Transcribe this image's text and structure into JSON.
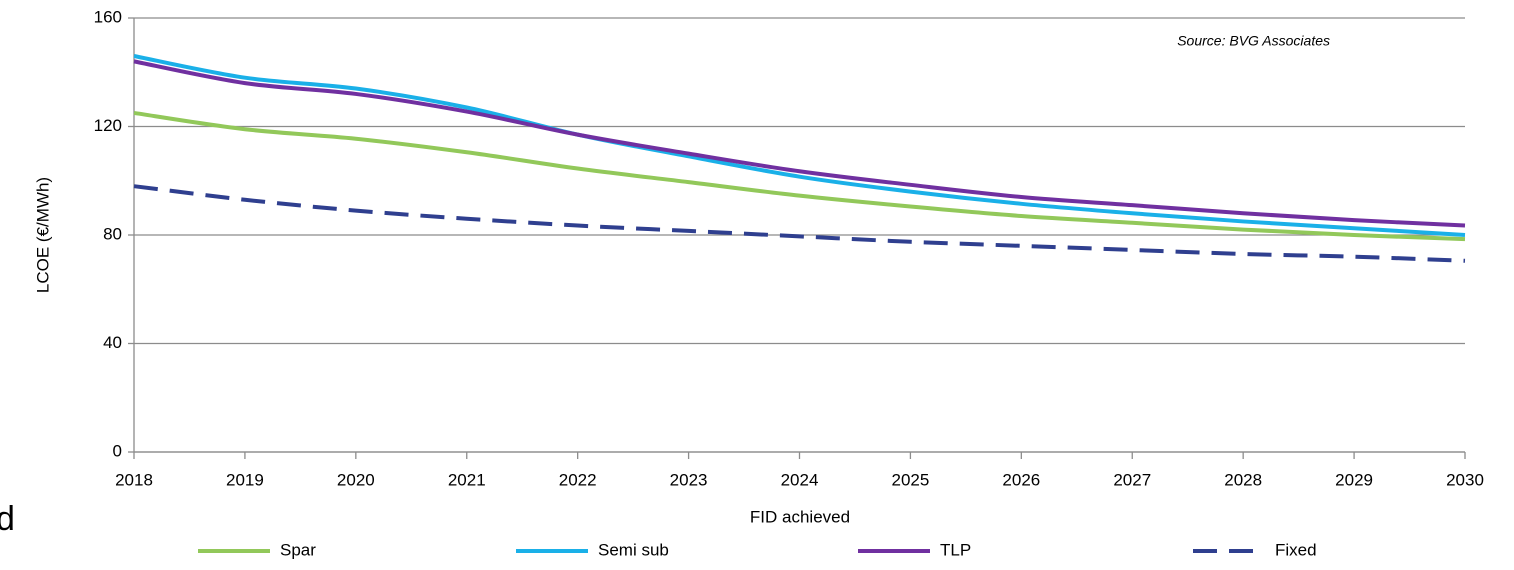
{
  "chart_data": {
    "type": "line",
    "annotation": "Source: BVG Associates",
    "side_text": "d",
    "x_label": "FID achieved",
    "y_label": "LCOE (€/MWh)",
    "x": [
      2018,
      2019,
      2020,
      2021,
      2022,
      2023,
      2024,
      2025,
      2026,
      2027,
      2028,
      2029,
      2030
    ],
    "xlim": [
      2018,
      2030
    ],
    "xticks": [
      2018,
      2019,
      2020,
      2021,
      2022,
      2023,
      2024,
      2025,
      2026,
      2027,
      2028,
      2029,
      2030
    ],
    "ylim": [
      0,
      160
    ],
    "yticks": [
      0,
      40,
      80,
      120,
      160
    ],
    "grid": true,
    "legend": "bottom",
    "series": [
      {
        "name": "Spar",
        "color": "#92c85a",
        "dashed": false,
        "values": [
          125,
          119,
          115.5,
          110.5,
          104.5,
          99.5,
          94.5,
          90.5,
          87,
          84.5,
          82,
          80,
          78.5
        ]
      },
      {
        "name": "Semi sub",
        "color": "#1ab0e8",
        "dashed": false,
        "values": [
          146,
          138,
          134,
          127,
          117,
          109,
          101.5,
          96,
          91.5,
          88,
          85,
          82.5,
          80
        ]
      },
      {
        "name": "TLP",
        "color": "#7030a0",
        "dashed": false,
        "values": [
          144,
          136,
          132,
          125.5,
          117,
          110,
          103.5,
          98.5,
          94,
          91,
          88,
          85.5,
          83.5
        ]
      },
      {
        "name": "Fixed",
        "color": "#2f3f8f",
        "dashed": true,
        "values": [
          98,
          93,
          89,
          86,
          83.5,
          81.5,
          79.5,
          77.5,
          76,
          74.5,
          73,
          72,
          70.5
        ]
      }
    ]
  }
}
